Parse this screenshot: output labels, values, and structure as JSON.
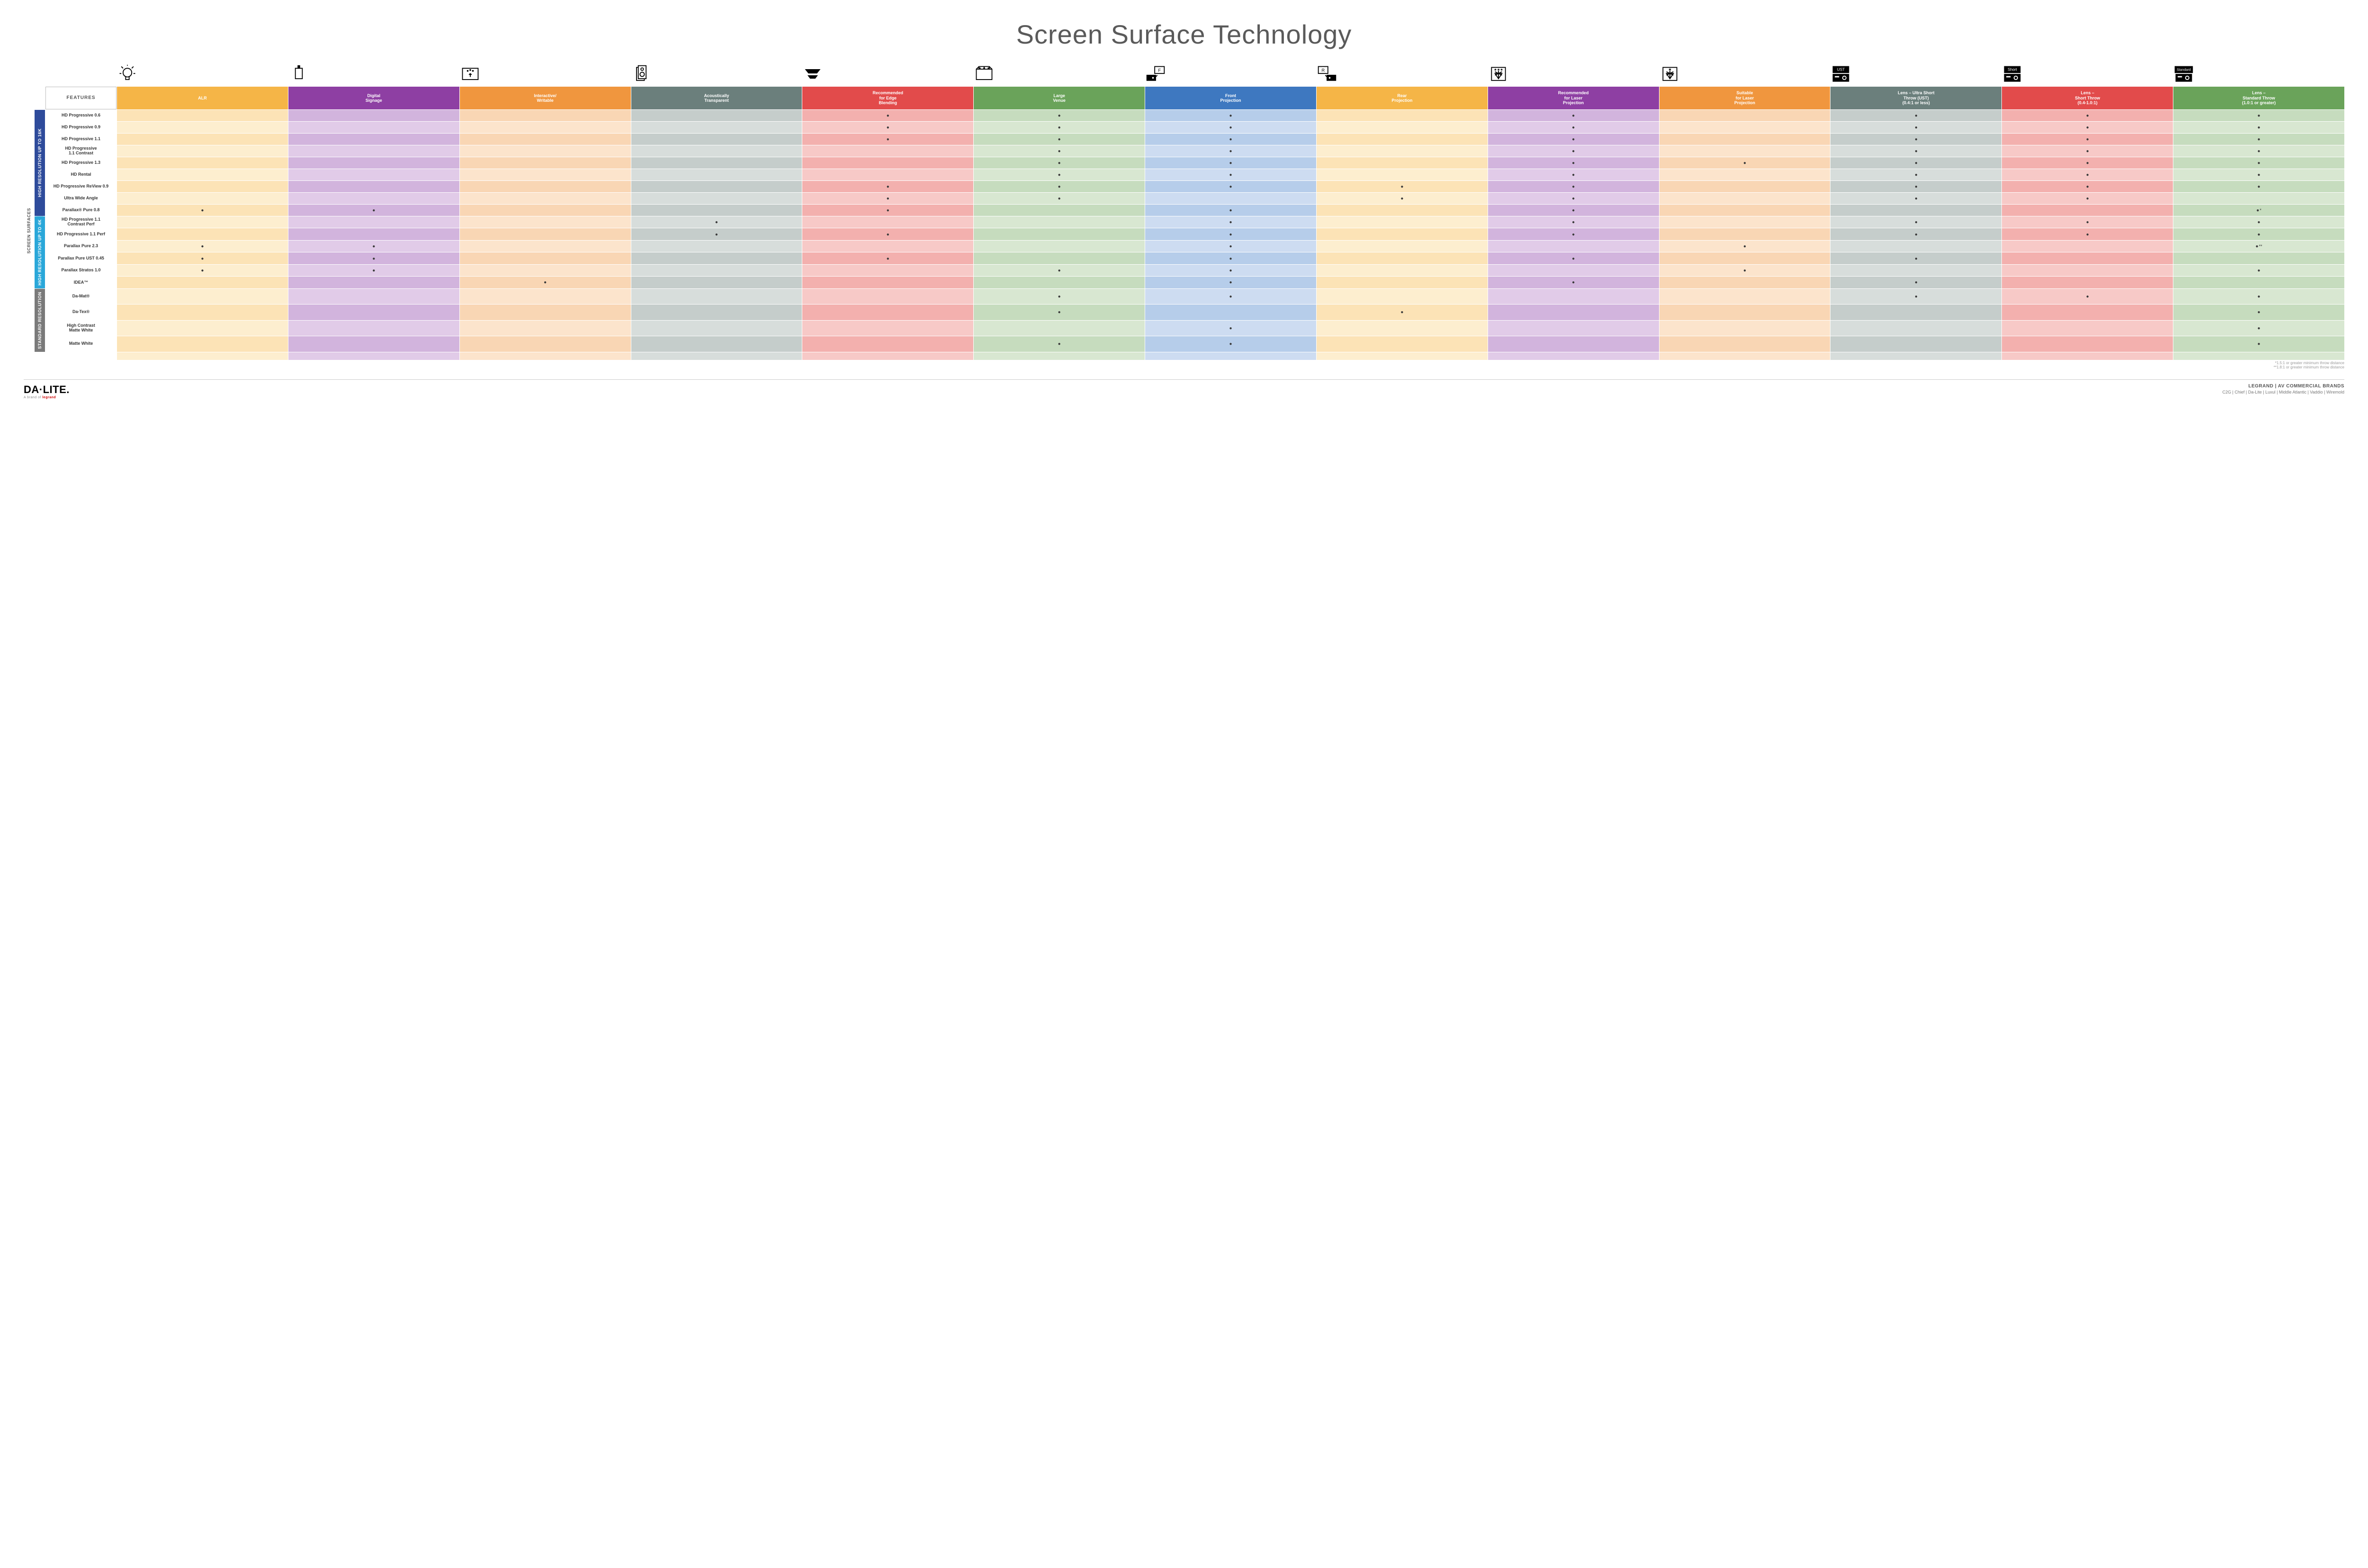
{
  "title": "Screen Surface Technology",
  "features_header": "FEATURES",
  "columns": [
    {
      "label": "ALR",
      "color": "#f5b547",
      "tint": "#fce3b6",
      "tintAlt": "#fdeecf"
    },
    {
      "label": "Digital\nSignage",
      "color": "#8e3fa3",
      "tint": "#d2b4dd",
      "tintAlt": "#e1cbe8"
    },
    {
      "label": "Interactive/\nWritable",
      "color": "#f0963e",
      "tint": "#f9d6b4",
      "tintAlt": "#fce4cc"
    },
    {
      "label": "Acoustically\nTransparent",
      "color": "#6b7f7c",
      "tint": "#c5cdcb",
      "tintAlt": "#d7dddb"
    },
    {
      "label": "Recommended\nfor Edge\nBlending",
      "color": "#e24b4b",
      "tint": "#f3b0ae",
      "tintAlt": "#f7c9c7"
    },
    {
      "label": "Large\nVenue",
      "color": "#6aa35a",
      "tint": "#c6dcbe",
      "tintAlt": "#d8e7d1"
    },
    {
      "label": "Front\nProjection",
      "color": "#3e78c0",
      "tint": "#b6cdea",
      "tintAlt": "#cddcf1"
    },
    {
      "label": "Rear\nProjection",
      "color": "#f5b547",
      "tint": "#fce3b6",
      "tintAlt": "#fdeecf"
    },
    {
      "label": "Recommended\nfor Laser\nProjection",
      "color": "#8e3fa3",
      "tint": "#d2b4dd",
      "tintAlt": "#e1cbe8"
    },
    {
      "label": "Suitable\nfor Laser\nProjection",
      "color": "#f0963e",
      "tint": "#f9d6b4",
      "tintAlt": "#fce4cc"
    },
    {
      "label": "Lens – Ultra Short\nThrow (UST)\n(0.4:1 or less)",
      "color": "#6b7f7c",
      "tint": "#c5cdcb",
      "tintAlt": "#d7dddb"
    },
    {
      "label": "Lens –\nShort Throw\n(0.4-1.0:1)",
      "color": "#e24b4b",
      "tint": "#f3b0ae",
      "tintAlt": "#f7c9c7"
    },
    {
      "label": "Lens –\nStandard Throw\n(1.0:1 or greater)",
      "color": "#6aa35a",
      "tint": "#c6dcbe",
      "tintAlt": "#d8e7d1"
    }
  ],
  "icons": [
    "bulb",
    "signage",
    "touch",
    "speaker",
    "wide",
    "venue",
    "front-proj",
    "rear-proj",
    "laser-rec",
    "laser-suit",
    "ust",
    "short",
    "standard"
  ],
  "outerGroup": {
    "label": "SCREEN SURFACES",
    "rows": 19
  },
  "groups": [
    {
      "label": "HIGH RESOLUTION UP TO 16K",
      "color": "#2e4b9b",
      "rows": 9
    },
    {
      "label": "HIGH RESOLUTION UP TO 4K",
      "color": "#2aa7d9",
      "rows": 6
    },
    {
      "label": "STANDARD\nRESOLUTION",
      "color": "#7a7a7a",
      "rows": 4
    }
  ],
  "rows": [
    {
      "label": "HD Progressive 0.6",
      "dots": [
        0,
        0,
        0,
        0,
        1,
        1,
        1,
        0,
        1,
        0,
        1,
        1,
        1
      ]
    },
    {
      "label": "HD Progressive 0.9",
      "dots": [
        0,
        0,
        0,
        0,
        1,
        1,
        1,
        0,
        1,
        0,
        1,
        1,
        1
      ]
    },
    {
      "label": "HD Progressive 1.1",
      "dots": [
        0,
        0,
        0,
        0,
        1,
        1,
        1,
        0,
        1,
        0,
        1,
        1,
        1
      ]
    },
    {
      "label": "HD Progressive\n1.1 Contrast",
      "dots": [
        0,
        0,
        0,
        0,
        0,
        1,
        1,
        0,
        1,
        0,
        1,
        1,
        1
      ]
    },
    {
      "label": "HD Progressive 1.3",
      "dots": [
        0,
        0,
        0,
        0,
        0,
        1,
        1,
        0,
        1,
        1,
        1,
        1,
        1
      ]
    },
    {
      "label": "HD Rental",
      "dots": [
        0,
        0,
        0,
        0,
        0,
        1,
        1,
        0,
        1,
        0,
        1,
        1,
        1
      ]
    },
    {
      "label": "HD Progressive ReView 0.9",
      "dots": [
        0,
        0,
        0,
        0,
        1,
        1,
        1,
        1,
        1,
        0,
        1,
        1,
        1
      ]
    },
    {
      "label": "Ultra Wide Angle",
      "dots": [
        0,
        0,
        0,
        0,
        1,
        1,
        0,
        1,
        1,
        0,
        1,
        1,
        0
      ]
    },
    {
      "label": "Parallax® Pure 0.8",
      "dots": [
        1,
        1,
        0,
        0,
        1,
        0,
        1,
        0,
        1,
        0,
        0,
        0,
        1
      ],
      "suffix": "*"
    },
    {
      "label": "HD Progressive 1.1\nContrast Perf",
      "dots": [
        0,
        0,
        0,
        1,
        0,
        0,
        1,
        0,
        1,
        0,
        1,
        1,
        1
      ]
    },
    {
      "label": "HD Progressive 1.1 Perf",
      "dots": [
        0,
        0,
        0,
        1,
        1,
        0,
        1,
        0,
        1,
        0,
        1,
        1,
        1
      ]
    },
    {
      "label": "Parallax Pure 2.3",
      "dots": [
        1,
        1,
        0,
        0,
        0,
        0,
        1,
        0,
        0,
        1,
        0,
        0,
        1
      ],
      "suffix": "**"
    },
    {
      "label": "Parallax Pure UST 0.45",
      "dots": [
        1,
        1,
        0,
        0,
        1,
        0,
        1,
        0,
        1,
        0,
        1,
        0,
        0
      ]
    },
    {
      "label": "Parallax Stratos 1.0",
      "dots": [
        1,
        1,
        0,
        0,
        0,
        1,
        1,
        0,
        0,
        1,
        0,
        0,
        1
      ]
    },
    {
      "label": "IDEA™",
      "dots": [
        0,
        0,
        1,
        0,
        0,
        0,
        1,
        0,
        1,
        0,
        1,
        0,
        0
      ]
    },
    {
      "label": "Da-Mat®",
      "dots": [
        0,
        0,
        0,
        0,
        0,
        1,
        1,
        0,
        0,
        0,
        1,
        1,
        1
      ]
    },
    {
      "label": "Da-Tex®",
      "dots": [
        0,
        0,
        0,
        0,
        0,
        1,
        0,
        1,
        0,
        0,
        0,
        0,
        1
      ]
    },
    {
      "label": "High Contrast\nMatte White",
      "dots": [
        0,
        0,
        0,
        0,
        0,
        0,
        1,
        0,
        0,
        0,
        0,
        0,
        1
      ]
    },
    {
      "label": "Matte White",
      "dots": [
        0,
        0,
        0,
        0,
        0,
        1,
        1,
        0,
        0,
        0,
        0,
        0,
        1
      ]
    }
  ],
  "footnotes": [
    "*1.5:1 or greater minimum throw distance",
    "**1.8:1 or greater minimum throw distance"
  ],
  "footer": {
    "logo": "DA·LITE.",
    "logo_sub_prefix": "A brand of ",
    "logo_sub_brand": "legrand",
    "brands_title": "LEGRAND | AV COMMERCIAL BRANDS",
    "brands_list": "C2G  |  Chief  |  Da-Lite  |  Luxul  |  Middle Atlantic  |  Vaddio  |  Wiremold"
  }
}
